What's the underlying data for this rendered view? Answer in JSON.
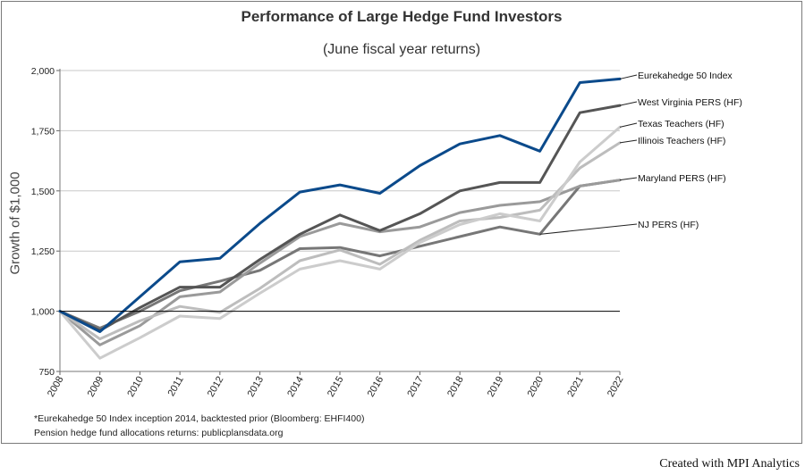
{
  "chart_data": {
    "type": "line",
    "title": "Performance of Large Hedge Fund Investors",
    "subtitle": "(June fiscal year returns)",
    "ylabel": "Growth of $1,000",
    "xlabel": "",
    "x": [
      "2008",
      "2009",
      "2010",
      "2011",
      "2012",
      "2013",
      "2014",
      "2015",
      "2016",
      "2017",
      "2018",
      "2019",
      "2020",
      "2021",
      "2022"
    ],
    "ylim": [
      750,
      2000
    ],
    "yticks": [
      750,
      1000,
      1250,
      1500,
      1750,
      2000
    ],
    "ytick_labels": [
      "750",
      "1,000",
      "1,250",
      "1,500",
      "1,750",
      "2,000"
    ],
    "reference_line": 1000,
    "grid": true,
    "legend_placement": "right",
    "series": [
      {
        "name": "Eurekahedge 50 Index",
        "color": "#0b4a8b",
        "width": 3,
        "values": [
          1000,
          915,
          1060,
          1205,
          1220,
          1365,
          1495,
          1525,
          1490,
          1605,
          1695,
          1730,
          1665,
          1950,
          1965
        ]
      },
      {
        "name": "West Virginia PERS (HF)",
        "color": "#555555",
        "width": 3,
        "values": [
          1000,
          920,
          1015,
          1100,
          1100,
          1215,
          1320,
          1400,
          1335,
          1405,
          1500,
          1535,
          1535,
          1825,
          1855
        ]
      },
      {
        "name": "Texas Teachers (HF)",
        "color": "#cccccc",
        "width": 3,
        "values": [
          1000,
          805,
          890,
          980,
          970,
          1075,
          1175,
          1210,
          1175,
          1285,
          1360,
          1405,
          1375,
          1620,
          1765
        ]
      },
      {
        "name": "Illinois Teachers (HF)",
        "color": "#bdbdbd",
        "width": 3,
        "values": [
          1000,
          885,
          960,
          1020,
          995,
          1095,
          1210,
          1255,
          1195,
          1295,
          1375,
          1390,
          1420,
          1595,
          1700
        ]
      },
      {
        "name": "Maryland PERS (HF)",
        "color": "#9a9a9a",
        "width": 3,
        "values": [
          1000,
          860,
          940,
          1060,
          1080,
          1200,
          1310,
          1365,
          1330,
          1350,
          1410,
          1440,
          1455,
          1520,
          1545
        ]
      },
      {
        "name": "NJ PERS (HF)",
        "color": "#777777",
        "width": 3,
        "values": [
          1000,
          930,
          1000,
          1085,
          1125,
          1170,
          1260,
          1265,
          1230,
          1270,
          1310,
          1350,
          1320,
          1520,
          1545
        ]
      }
    ],
    "notes": [
      "*Eurekahedge 50 Index inception 2014, backtested prior (Bloomberg: EHFI400)",
      "Pension hedge fund allocations returns: publicplansdata.org"
    ]
  },
  "credit": "Created with MPI Analytics"
}
